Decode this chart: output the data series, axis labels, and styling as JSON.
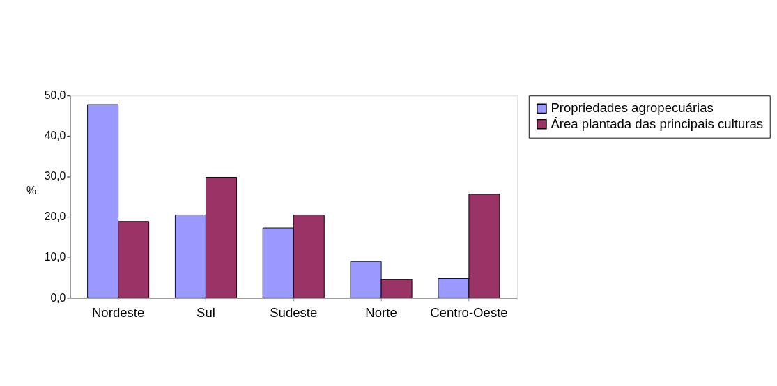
{
  "chart_data": {
    "type": "bar",
    "ylabel": "%",
    "categories": [
      "Nordeste",
      "Sul",
      "Sudeste",
      "Norte",
      "Centro-Oeste"
    ],
    "series": [
      {
        "name": "Propriedades agropecuárias",
        "color": "#9999ff",
        "values": [
          47.8,
          20.5,
          17.3,
          9.0,
          4.8
        ]
      },
      {
        "name": "Área plantada das principais culturas",
        "color": "#993366",
        "values": [
          18.9,
          29.8,
          20.5,
          4.5,
          25.6
        ]
      }
    ],
    "ylim": [
      0,
      50
    ],
    "yticks": [
      {
        "value": 0,
        "label": "0,0"
      },
      {
        "value": 10,
        "label": "10,0"
      },
      {
        "value": 20,
        "label": "20,0"
      },
      {
        "value": 30,
        "label": "30,0"
      },
      {
        "value": 40,
        "label": "40,0"
      },
      {
        "value": 50,
        "label": "50,0"
      }
    ],
    "grid": false,
    "legend": "right"
  }
}
